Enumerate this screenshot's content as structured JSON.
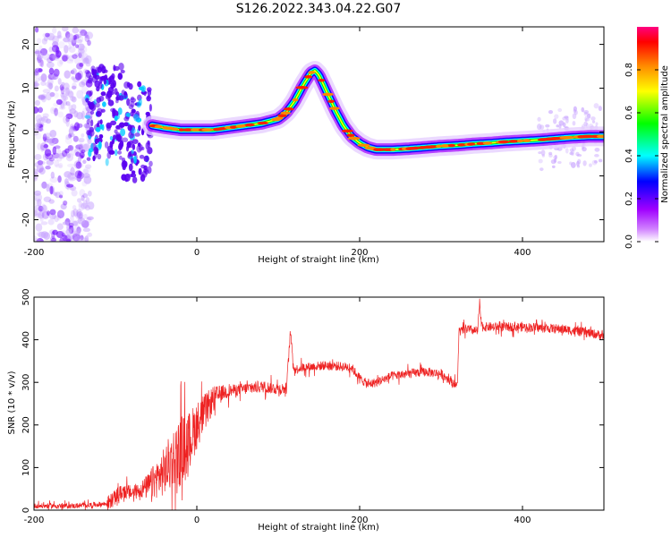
{
  "figure_title": "S126.2022.343.04.22.G07",
  "colors": {
    "snr_line": "#ee2222",
    "ridge": "#ff2200",
    "scatter": "#6a00ff",
    "colormap": [
      "#ffffff",
      "#a000ff",
      "#0000ff",
      "#00ffff",
      "#00ff00",
      "#ffff00",
      "#ff8800",
      "#ff0000",
      "#ff0080"
    ]
  },
  "chart_data": [
    {
      "type": "heatmap",
      "title": "",
      "xlabel": "Height of straight line (km)",
      "ylabel": "Frequency (Hz)",
      "xlim": [
        -200,
        500
      ],
      "ylim": [
        -25,
        24
      ],
      "xticks": [
        "-200",
        "0",
        "200",
        "400"
      ],
      "yticks": [
        "-20",
        "-10",
        "0",
        "10",
        "20"
      ],
      "colorbar": {
        "label": "Normalized spectral amplitude",
        "range": [
          0,
          1
        ],
        "ticks": [
          "0.0",
          "0.2",
          "0.4",
          "0.6",
          "0.8"
        ]
      },
      "ridge": {
        "x": [
          -55,
          -40,
          -20,
          0,
          20,
          40,
          60,
          80,
          100,
          110,
          120,
          130,
          140,
          145,
          150,
          160,
          170,
          180,
          190,
          200,
          210,
          220,
          240,
          260,
          280,
          300,
          320,
          340,
          360,
          380,
          400,
          420,
          440,
          460,
          480,
          500
        ],
        "y": [
          1.5,
          1,
          0.5,
          0.5,
          0.5,
          1,
          1.5,
          2,
          3,
          4.5,
          7,
          10.5,
          13.5,
          14,
          13,
          9,
          5,
          1.5,
          -1,
          -2.5,
          -3.5,
          -4,
          -4,
          -3.8,
          -3.5,
          -3.2,
          -3,
          -2.7,
          -2.5,
          -2.2,
          -2,
          -1.8,
          -1.5,
          -1.2,
          -1,
          -1
        ]
      }
    },
    {
      "type": "line",
      "title": "",
      "xlabel": "Height of straight line (km)",
      "ylabel": "SNR (10 * v/v)",
      "xlim": [
        -200,
        500
      ],
      "ylim": [
        0,
        500
      ],
      "xticks": [
        "-200",
        "0",
        "200",
        "400"
      ],
      "yticks": [
        "0",
        "100",
        "200",
        "300",
        "400",
        "500"
      ],
      "series": [
        {
          "x": [
            -200,
            -150,
            -110,
            -100,
            -90,
            -80,
            -60,
            -40,
            -30,
            -20,
            -10,
            0,
            10,
            20,
            30,
            40,
            60,
            80,
            100,
            110,
            115,
            118,
            120,
            130,
            160,
            190,
            200,
            210,
            220,
            240,
            260,
            280,
            300,
            315,
            320,
            322,
            325,
            330,
            345,
            347,
            350,
            400,
            450,
            500
          ],
          "y": [
            10,
            10,
            15,
            30,
            45,
            40,
            55,
            90,
            120,
            140,
            160,
            200,
            230,
            260,
            275,
            280,
            285,
            290,
            285,
            285,
            420,
            350,
            330,
            335,
            340,
            335,
            310,
            295,
            300,
            315,
            320,
            325,
            320,
            300,
            290,
            420,
            420,
            425,
            420,
            480,
            430,
            430,
            425,
            410
          ]
        }
      ]
    }
  ]
}
